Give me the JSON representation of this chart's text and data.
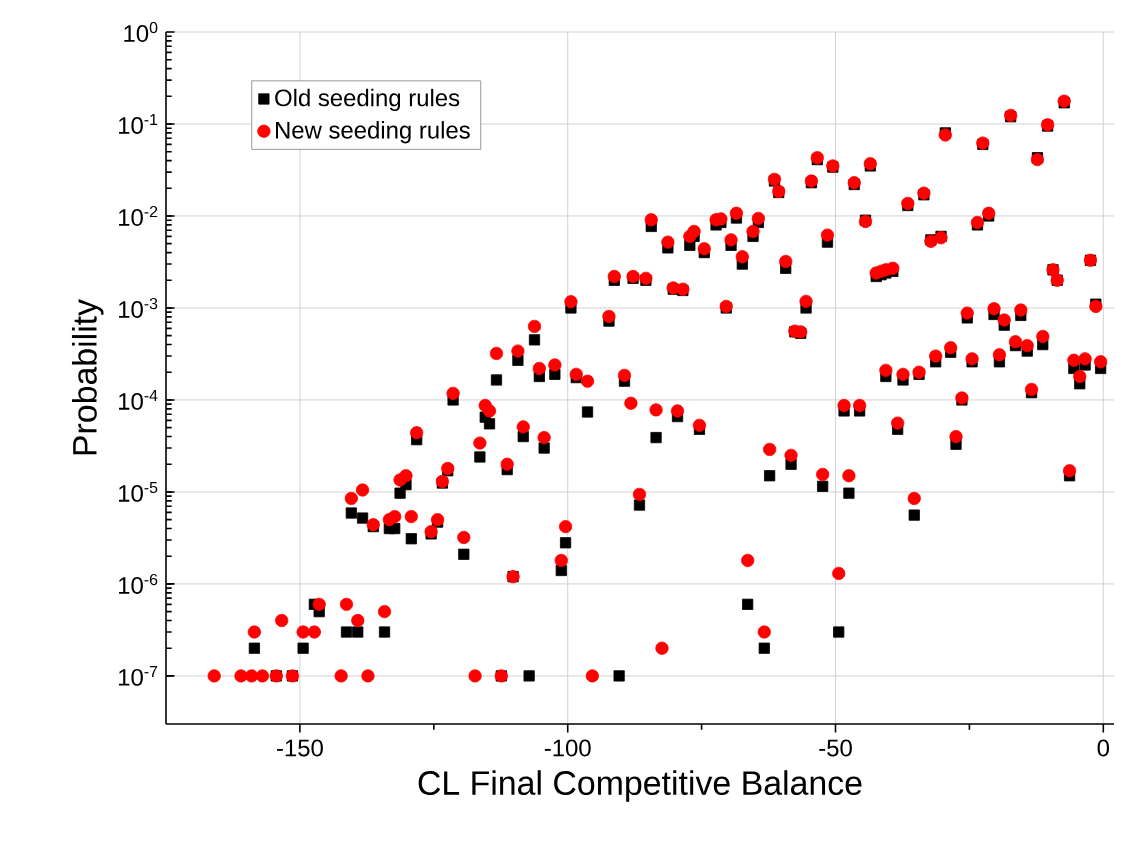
{
  "chart_data": {
    "type": "scatter",
    "xlabel": "CL Final Competitive Balance",
    "ylabel": "Probability",
    "xlim": [
      -175,
      2
    ],
    "ylim": [
      3e-08,
      1
    ],
    "xticks": [
      -150,
      -100,
      -50,
      0
    ],
    "yticks": [
      {
        "value": 1e-07,
        "label": "10$^{-7}$"
      },
      {
        "value": 1e-06,
        "label": "10$^{-6}$"
      },
      {
        "value": 1e-05,
        "label": "10$^{-5}$"
      },
      {
        "value": 0.0001,
        "label": "10$^{-4}$"
      },
      {
        "value": 0.001,
        "label": "10$^{-3}$"
      },
      {
        "value": 0.01,
        "label": "10$^{-2}$"
      },
      {
        "value": 0.1,
        "label": "10$^{-1}$"
      },
      {
        "value": 1,
        "label": "10$^{0}$"
      }
    ],
    "log": "y",
    "grid": true,
    "legend": "top left",
    "x": [
      -166,
      -161,
      -159,
      -158.5,
      -157,
      -154.4,
      -153.4,
      -151.4,
      -149.4,
      -147.3,
      -146.4,
      -142.3,
      -141.3,
      -140.4,
      -139.2,
      -138.3,
      -137.3,
      -136.3,
      -134.2,
      -133.3,
      -132.3,
      -131.3,
      -130.2,
      -129.2,
      -128.2,
      -125.5,
      -124.3,
      -123.4,
      -122.4,
      -121.4,
      -119.4,
      -117.3,
      -116.4,
      -115.4,
      -114.6,
      -113.3,
      -112.4,
      -111.3,
      -110.2,
      -109.3,
      -108.3,
      -107.2,
      -106.2,
      -105.3,
      -104.4,
      -102.4,
      -101.2,
      -100.4,
      -99.4,
      -98.4,
      -96.3,
      -95.4,
      -92.3,
      -91.3,
      -90.4,
      -89.4,
      -88.2,
      -87.8,
      -86.6,
      -85.4,
      -84.4,
      -83.5,
      -82.4,
      -81.3,
      -80.3,
      -79.5,
      -78.5,
      -77.2,
      -76.4,
      -75.4,
      -74.5,
      -72.3,
      -71.4,
      -70.4,
      -69.5,
      -68.5,
      -67.4,
      -66.4,
      -65.4,
      -64.4,
      -63.3,
      -62.3,
      -61.4,
      -60.6,
      -59.3,
      -58.3,
      -57.6,
      -56.5,
      -55.5,
      -54.5,
      -53.4,
      -52.4,
      -51.5,
      -50.5,
      -49.4,
      -48.4,
      -47.5,
      -46.5,
      -45.5,
      -44.4,
      -43.5,
      -42.4,
      -41.5,
      -40.6,
      -40.6,
      -39.3,
      -38.4,
      -37.4,
      -36.5,
      -35.3,
      -34.4,
      -33.5,
      -32.2,
      -31.3,
      -30.3,
      -29.5,
      -28.5,
      -27.5,
      -26.4,
      -25.4,
      -24.5,
      -23.5,
      -22.5,
      -21.4,
      -20.4,
      -19.4,
      -18.5,
      -17.3,
      -16.4,
      -15.4,
      -14.2,
      -13.4,
      -12.3,
      -11.3,
      -10.4,
      -9.4,
      -8.6,
      -7.3,
      -6.3,
      -5.5,
      -4.4,
      -3.4,
      -2.4,
      -1.4,
      -0.5
    ],
    "series": [
      {
        "name": "Old seeding rules",
        "color": "#000000",
        "marker": "square",
        "values": [
          null,
          null,
          null,
          2e-07,
          null,
          1e-07,
          null,
          1e-07,
          2e-07,
          6e-07,
          5e-07,
          null,
          3e-07,
          5.9e-06,
          3e-07,
          5.2e-06,
          null,
          4.2e-06,
          3e-07,
          4e-06,
          4e-06,
          9.7e-06,
          1.2e-05,
          3.1e-06,
          3.7e-05,
          3.5e-06,
          4.7e-06,
          1.25e-05,
          1.7e-05,
          0.0001,
          2.1e-06,
          null,
          2.4e-05,
          6.5e-05,
          5.5e-05,
          0.000165,
          1e-07,
          1.75e-05,
          1.2e-06,
          0.00027,
          4e-05,
          1e-07,
          0.00045,
          0.00018,
          3e-05,
          0.00019,
          1.4e-06,
          2.8e-06,
          0.001,
          0.000175,
          7.4e-05,
          null,
          0.00072,
          0.002,
          1e-07,
          0.00016,
          null,
          0.0021,
          7.2e-06,
          0.002,
          0.0077,
          3.9e-05,
          null,
          0.0045,
          0.0016,
          6.6e-05,
          0.00155,
          0.0048,
          0.006,
          4.8e-05,
          0.004,
          0.008,
          0.0085,
          0.001,
          0.0048,
          0.0095,
          0.003,
          6e-07,
          0.006,
          0.0085,
          2e-07,
          1.5e-05,
          0.024,
          0.018,
          0.0027,
          2e-05,
          0.00055,
          0.00053,
          0.001,
          0.023,
          0.041,
          1.15e-05,
          0.0052,
          0.034,
          3e-07,
          7.6e-05,
          9.7e-06,
          0.022,
          7.6e-05,
          0.009,
          0.035,
          0.0022,
          0.0023,
          0.0024,
          0.00018,
          0.0025,
          4.8e-05,
          0.000165,
          0.013,
          5.6e-06,
          0.00019,
          0.017,
          0.0055,
          0.00026,
          0.006,
          0.08,
          0.00033,
          3.3e-05,
          0.0001,
          0.00078,
          0.00026,
          0.008,
          0.06,
          0.01,
          0.00085,
          0.00026,
          0.00065,
          0.12,
          0.00039,
          0.00083,
          0.00034,
          0.00012,
          0.043,
          0.0004,
          0.095,
          0.0026,
          0.002,
          0.17,
          1.5e-05,
          0.00022,
          0.00015,
          0.00024,
          0.0033,
          0.0011,
          0.00022
        ]
      },
      {
        "name": "New seeding rules",
        "color": "#ff0000",
        "marker": "circle",
        "values": [
          1e-07,
          1e-07,
          1e-07,
          3e-07,
          1e-07,
          1e-07,
          4e-07,
          1e-07,
          3e-07,
          3e-07,
          6e-07,
          1e-07,
          6e-07,
          8.5e-06,
          4e-07,
          1.05e-05,
          1e-07,
          4.4e-06,
          5e-07,
          5e-06,
          5.4e-06,
          1.35e-05,
          1.5e-05,
          5.4e-06,
          4.4e-05,
          3.7e-06,
          5e-06,
          1.3e-05,
          1.8e-05,
          0.000118,
          3.2e-06,
          1e-07,
          3.4e-05,
          8.7e-05,
          7.6e-05,
          0.00032,
          1e-07,
          2e-05,
          1.2e-06,
          0.00034,
          5.1e-05,
          null,
          0.00063,
          0.00022,
          3.9e-05,
          0.00024,
          1.8e-06,
          4.2e-06,
          0.00117,
          0.00019,
          0.00016,
          1e-07,
          0.00081,
          0.0022,
          null,
          0.000185,
          9.2e-05,
          0.0022,
          9.4e-06,
          0.0021,
          0.0091,
          7.8e-05,
          2e-07,
          0.0052,
          0.00165,
          7.6e-05,
          0.0016,
          0.006,
          0.0068,
          5.3e-05,
          0.0044,
          0.0091,
          0.0093,
          0.00104,
          0.0055,
          0.0107,
          0.0036,
          1.8e-06,
          0.0068,
          0.0094,
          3e-07,
          2.9e-05,
          0.025,
          0.0185,
          0.0032,
          2.5e-05,
          0.00056,
          0.00055,
          0.00118,
          0.024,
          0.043,
          1.55e-05,
          0.0062,
          0.035,
          1.3e-06,
          8.7e-05,
          1.5e-05,
          0.023,
          8.7e-05,
          0.0087,
          0.037,
          0.0024,
          0.0025,
          0.0026,
          0.00021,
          0.0027,
          5.6e-05,
          0.00019,
          0.0137,
          8.5e-06,
          0.0002,
          0.0177,
          0.0053,
          0.0003,
          0.0058,
          0.076,
          0.00037,
          4e-05,
          0.000105,
          0.00088,
          0.00028,
          0.0085,
          0.062,
          0.0107,
          0.00098,
          0.00031,
          0.00074,
          0.124,
          0.00043,
          0.00095,
          0.00039,
          0.00013,
          0.041,
          0.00049,
          0.098,
          0.0026,
          0.002,
          0.177,
          1.7e-05,
          0.00027,
          0.00018,
          0.00028,
          0.0033,
          0.00104,
          0.00026
        ]
      }
    ]
  }
}
